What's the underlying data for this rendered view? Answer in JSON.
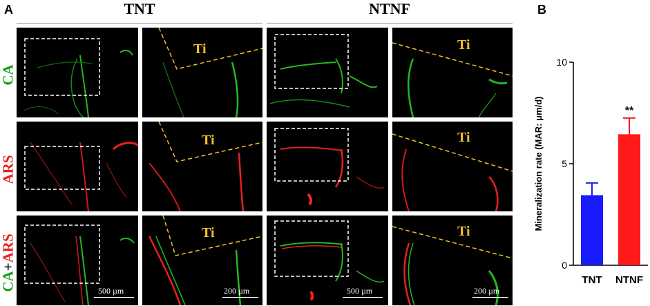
{
  "panels": {
    "a": "A",
    "b": "B"
  },
  "groups": [
    "TNT",
    "NTNF"
  ],
  "rows": [
    "CA",
    "ARS",
    "CA+ARS"
  ],
  "row_label_parts": {
    "ca": "CA",
    "plus": "+",
    "ars": "ARS"
  },
  "ti_label": "Ti",
  "scalebars": {
    "overview": "500 µm",
    "zoom": "200 µm"
  },
  "colors": {
    "ca": "#18a018",
    "ars": "#e82020",
    "ti": "#f5c02a",
    "bar_tnt": "#1a1aff",
    "bar_ntnf": "#ff1a1a"
  },
  "chart_data": {
    "type": "bar",
    "categories": [
      "TNT",
      "NTNF"
    ],
    "values": [
      3.45,
      6.45
    ],
    "errors": [
      0.6,
      0.8
    ],
    "annotations": [
      "",
      "**"
    ],
    "xlabel": "",
    "ylabel": "Mineralization rate (MAR: μm/d)",
    "ylim": [
      0,
      10
    ],
    "yticks": [
      0,
      5,
      10
    ],
    "grid": false,
    "legend": "none"
  }
}
